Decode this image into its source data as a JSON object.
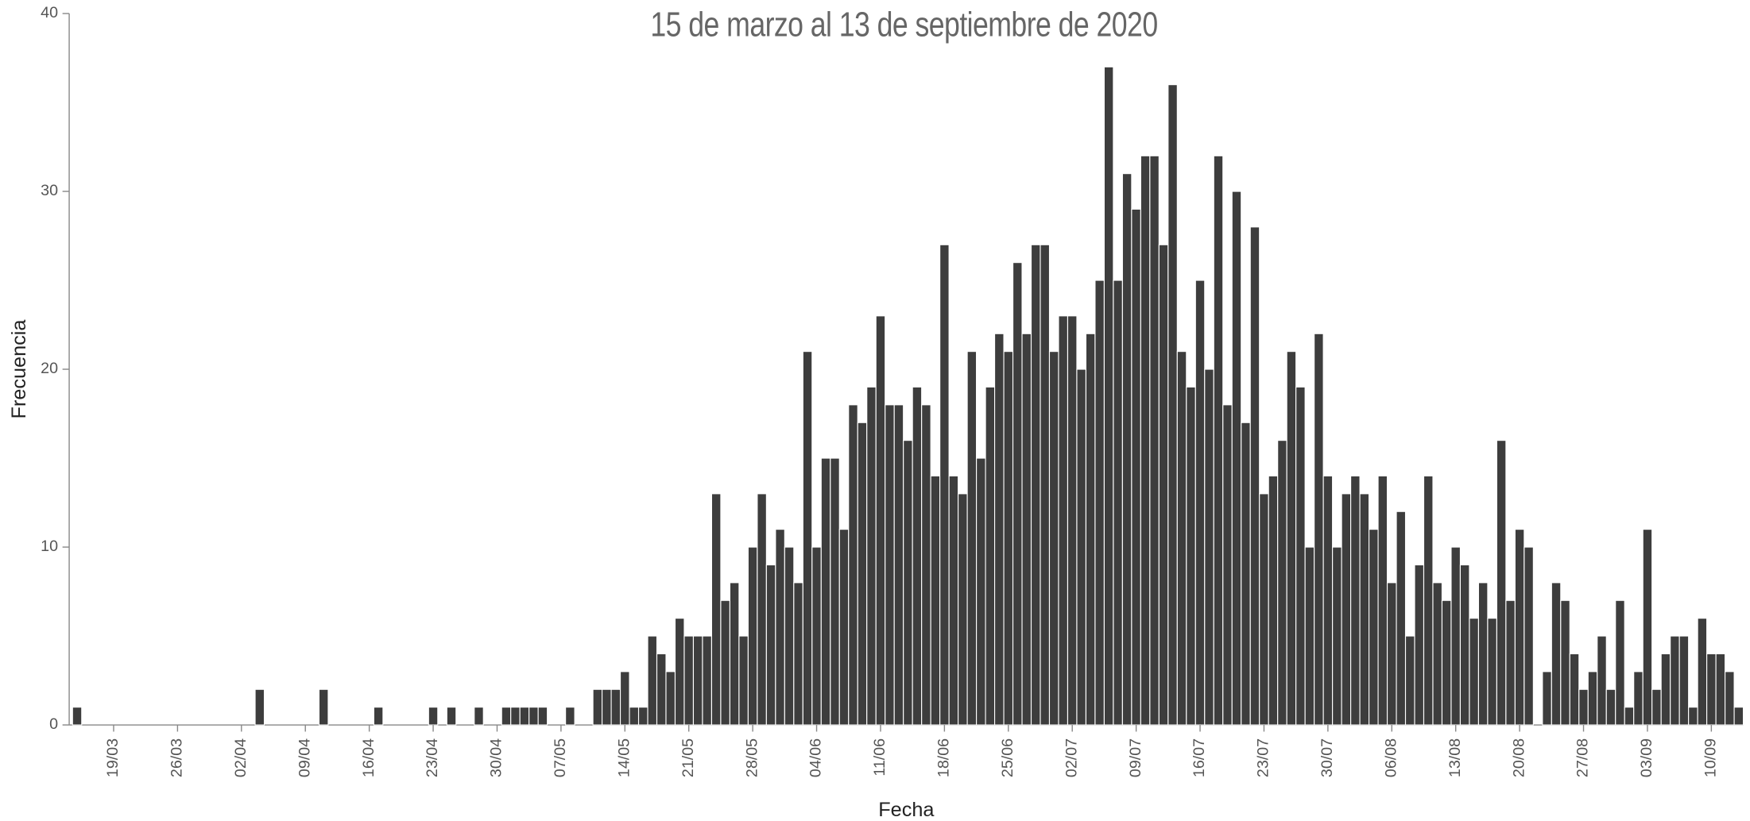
{
  "chart_data": {
    "type": "bar",
    "subtitle": "15 de marzo al 13 de septiembre de 2020",
    "x_label": "Fecha",
    "y_label": "Frecuencia",
    "color": "#3d3d3d",
    "categories": [
      null,
      null,
      null,
      null,
      "19/03",
      null,
      null,
      null,
      null,
      null,
      null,
      "26/03",
      null,
      null,
      null,
      null,
      null,
      null,
      "02/04",
      null,
      null,
      null,
      null,
      null,
      null,
      "09/04",
      null,
      null,
      null,
      null,
      null,
      null,
      "16/04",
      null,
      null,
      null,
      null,
      null,
      null,
      "23/04",
      null,
      null,
      null,
      null,
      null,
      null,
      "30/04",
      null,
      null,
      null,
      null,
      null,
      null,
      "07/05",
      null,
      null,
      null,
      null,
      null,
      null,
      "14/05",
      null,
      null,
      null,
      null,
      null,
      null,
      "21/05",
      null,
      null,
      null,
      null,
      null,
      null,
      "28/05",
      null,
      null,
      null,
      null,
      null,
      null,
      "04/06",
      null,
      null,
      null,
      null,
      null,
      null,
      "11/06",
      null,
      null,
      null,
      null,
      null,
      null,
      "18/06",
      null,
      null,
      null,
      null,
      null,
      null,
      "25/06",
      null,
      null,
      null,
      null,
      null,
      null,
      "02/07",
      null,
      null,
      null,
      null,
      null,
      null,
      "09/07",
      null,
      null,
      null,
      null,
      null,
      null,
      "16/07",
      null,
      null,
      null,
      null,
      null,
      null,
      "23/07",
      null,
      null,
      null,
      null,
      null,
      null,
      "30/07",
      null,
      null,
      null,
      null,
      null,
      null,
      "06/08",
      null,
      null,
      null,
      null,
      null,
      null,
      "13/08",
      null,
      null,
      null,
      null,
      null,
      null,
      "20/08",
      null,
      null,
      null,
      null,
      null,
      null,
      "27/08",
      null,
      null,
      null,
      null,
      null,
      null,
      "03/09",
      null,
      null,
      null,
      null,
      null,
      null,
      "10/09",
      null,
      null,
      null
    ],
    "values": [
      1,
      0,
      0,
      0,
      0,
      0,
      0,
      0,
      0,
      0,
      0,
      0,
      0,
      0,
      0,
      0,
      0,
      0,
      0,
      0,
      2,
      0,
      0,
      0,
      0,
      0,
      0,
      2,
      0,
      0,
      0,
      0,
      0,
      1,
      0,
      0,
      0,
      0,
      0,
      1,
      0,
      1,
      0,
      0,
      1,
      0,
      0,
      1,
      1,
      1,
      1,
      1,
      0,
      0,
      1,
      0,
      0,
      2,
      2,
      2,
      3,
      1,
      1,
      5,
      4,
      3,
      6,
      5,
      5,
      5,
      13,
      7,
      8,
      5,
      10,
      13,
      9,
      11,
      10,
      8,
      21,
      10,
      15,
      15,
      11,
      18,
      17,
      19,
      23,
      18,
      18,
      16,
      19,
      18,
      14,
      27,
      14,
      13,
      21,
      15,
      19,
      22,
      21,
      26,
      22,
      27,
      27,
      21,
      23,
      23,
      20,
      22,
      25,
      37,
      25,
      31,
      29,
      32,
      32,
      27,
      36,
      21,
      19,
      25,
      20,
      32,
      18,
      30,
      17,
      28,
      13,
      14,
      16,
      21,
      19,
      10,
      22,
      14,
      10,
      13,
      14,
      13,
      11,
      14,
      8,
      12,
      5,
      9,
      14,
      8,
      7,
      10,
      9,
      6,
      8,
      6,
      16,
      7,
      11,
      10,
      0,
      3,
      8,
      7,
      4,
      2,
      3,
      5,
      2,
      7,
      1,
      3,
      11,
      2,
      4,
      5,
      5,
      1,
      6,
      4,
      4,
      3,
      1
    ],
    "ylim": [
      0,
      40
    ],
    "yticks": [
      0,
      10,
      20,
      30,
      40
    ],
    "grid": false
  }
}
